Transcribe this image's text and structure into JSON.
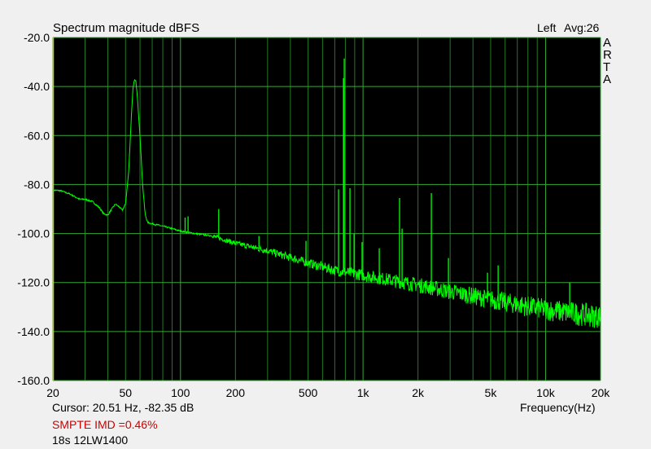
{
  "chart_data": {
    "type": "line",
    "title": "Spectrum magnitude dBFS",
    "channel_label": "Left",
    "avg_label": "Avg:26",
    "brand_vertical": [
      "A",
      "R",
      "T",
      "A"
    ],
    "xlabel": "Frequency(Hz)",
    "ylabel": "",
    "x_scale": "log",
    "xlim": [
      20,
      20000
    ],
    "ylim": [
      -160,
      -20
    ],
    "x_ticks": [
      20,
      50,
      100,
      200,
      500,
      1000,
      2000,
      5000,
      10000,
      20000
    ],
    "x_tick_labels": [
      "20",
      "50",
      "100",
      "200",
      "500",
      "1k",
      "2k",
      "5k",
      "10k",
      "20k"
    ],
    "y_ticks": [
      -20,
      -40,
      -60,
      -80,
      -100,
      -120,
      -140,
      -160
    ],
    "y_tick_labels": [
      "-20.0",
      "-40.0",
      "-60.0",
      "-80.0",
      "-100.0",
      "-120.0",
      "-140.0",
      "-160.0"
    ],
    "grid": true,
    "colors": {
      "background": "#000000",
      "grid": "#237a23",
      "trace": "#00ff00",
      "left_axis": "#c8c800",
      "imd_text": "#cc0000"
    },
    "series": [
      {
        "envelope": [
          [
            20,
            -82.3
          ],
          [
            22,
            -82.5
          ],
          [
            25,
            -84
          ],
          [
            28,
            -86
          ],
          [
            30,
            -86
          ],
          [
            33,
            -87
          ],
          [
            36,
            -89.5
          ],
          [
            38,
            -92
          ],
          [
            40,
            -92.5
          ],
          [
            42,
            -90
          ],
          [
            44,
            -88
          ],
          [
            46,
            -89
          ],
          [
            48,
            -90.5
          ],
          [
            50,
            -88
          ],
          [
            52,
            -75
          ],
          [
            54,
            -50
          ],
          [
            55,
            -40
          ],
          [
            56,
            -37.5
          ],
          [
            57,
            -38
          ],
          [
            58,
            -44
          ],
          [
            60,
            -60
          ],
          [
            62,
            -80
          ],
          [
            64,
            -92
          ],
          [
            66,
            -95.5
          ],
          [
            70,
            -96
          ],
          [
            80,
            -97
          ],
          [
            90,
            -98
          ],
          [
            100,
            -99
          ],
          [
            120,
            -100
          ],
          [
            150,
            -101
          ],
          [
            200,
            -104
          ],
          [
            300,
            -107
          ],
          [
            500,
            -112
          ],
          [
            700,
            -115
          ],
          [
            1000,
            -117
          ],
          [
            2000,
            -121
          ],
          [
            5000,
            -127
          ],
          [
            10000,
            -131
          ],
          [
            20000,
            -134
          ]
        ],
        "peaks": [
          [
            106,
            -93.5
          ],
          [
            110,
            -93
          ],
          [
            162,
            -90
          ],
          [
            269,
            -101
          ],
          [
            487,
            -103
          ],
          [
            734,
            -82
          ],
          [
            781,
            -36.6
          ],
          [
            789,
            -28.6
          ],
          [
            848,
            -81.5
          ],
          [
            893,
            -100
          ],
          [
            988,
            -103.5
          ],
          [
            1227,
            -106
          ],
          [
            1585,
            -85.5
          ],
          [
            1636,
            -98
          ],
          [
            2367,
            -83.5
          ],
          [
            2937,
            -110
          ],
          [
            4805,
            -116
          ],
          [
            5495,
            -113
          ],
          [
            13550,
            -120
          ]
        ]
      }
    ]
  },
  "footer": {
    "cursor": "Cursor: 20.51 Hz, -82.35 dB",
    "imd": "SMPTE IMD =0.46%",
    "note": "18s 12LW1400"
  }
}
